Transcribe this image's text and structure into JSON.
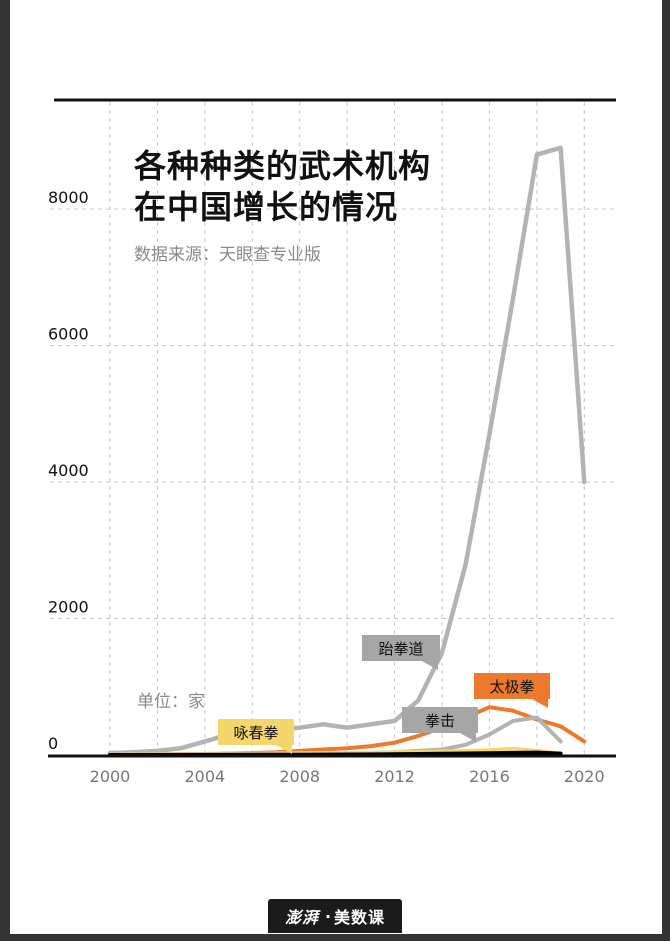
{
  "title_lines": [
    "各种种类的武术机构",
    "在中国增长的情况"
  ],
  "source": "数据来源：天眼查专业版",
  "unit": "单位：家",
  "footer": {
    "brand": "澎湃",
    "dot": "·",
    "product": "美数课"
  },
  "colors": {
    "background": "#333333",
    "taekwondo": "#b3b3b3",
    "boxing": "#b3b3b3",
    "taichi": "#ec7a2c",
    "wingchun": "#f5d66b",
    "black": "#000000",
    "grid": "#c8c8c8"
  },
  "chart_data": {
    "type": "line",
    "xlim": [
      2000,
      2021
    ],
    "ylim": [
      0,
      9600
    ],
    "x_ticks": [
      2000,
      2004,
      2008,
      2012,
      2016,
      2020
    ],
    "y_ticks": [
      0,
      2000,
      4000,
      6000,
      8000
    ],
    "grid": true,
    "series": [
      {
        "name": "跆拳道",
        "color": "#b3b3b3",
        "x": [
          2000,
          2001,
          2002,
          2003,
          2004,
          2005,
          2006,
          2007,
          2008,
          2009,
          2010,
          2011,
          2012,
          2013,
          2014,
          2015,
          2016,
          2017,
          2018,
          2019,
          2020
        ],
        "values": [
          30,
          40,
          60,
          100,
          200,
          300,
          350,
          380,
          400,
          450,
          400,
          450,
          500,
          800,
          1500,
          2800,
          4700,
          6700,
          8800,
          8900,
          4000
        ]
      },
      {
        "name": "太极拳",
        "color": "#ec7a2c",
        "x": [
          2000,
          2001,
          2002,
          2003,
          2004,
          2005,
          2006,
          2007,
          2008,
          2009,
          2010,
          2011,
          2012,
          2013,
          2014,
          2015,
          2016,
          2017,
          2018,
          2019,
          2020
        ],
        "values": [
          5,
          5,
          8,
          10,
          15,
          20,
          30,
          40,
          60,
          80,
          100,
          130,
          180,
          280,
          400,
          550,
          700,
          650,
          520,
          420,
          200
        ]
      },
      {
        "name": "拳击",
        "color": "#b3b3b3",
        "x": [
          2000,
          2001,
          2002,
          2003,
          2004,
          2005,
          2006,
          2007,
          2008,
          2009,
          2010,
          2011,
          2012,
          2013,
          2014,
          2015,
          2016,
          2017,
          2018,
          2019
        ],
        "values": [
          2,
          2,
          3,
          4,
          6,
          8,
          10,
          12,
          15,
          20,
          25,
          30,
          40,
          60,
          80,
          150,
          300,
          500,
          550,
          200
        ]
      },
      {
        "name": "咏春拳",
        "color": "#f5d66b",
        "x": [
          2000,
          2002,
          2004,
          2006,
          2008,
          2010,
          2012,
          2014,
          2016,
          2017,
          2018,
          2019
        ],
        "values": [
          5,
          10,
          15,
          20,
          25,
          30,
          40,
          50,
          70,
          90,
          60,
          20
        ]
      },
      {
        "color": "#000000",
        "x": [
          2000,
          2004,
          2008,
          2012,
          2016,
          2018,
          2019
        ],
        "values": [
          0,
          2,
          5,
          10,
          25,
          35,
          20
        ]
      }
    ],
    "annotations": [
      {
        "label": "跆拳道",
        "series": 0,
        "bg": "#a6a6a6",
        "text_color": "#111111"
      },
      {
        "label": "太极拳",
        "series": 1,
        "bg": "#ec7a2c",
        "text_color": "#111111"
      },
      {
        "label": "拳击",
        "series": 2,
        "bg": "#a6a6a6",
        "text_color": "#111111"
      },
      {
        "label": "咏春拳",
        "series": 3,
        "bg": "#f5d66b",
        "text_color": "#111111"
      }
    ]
  }
}
